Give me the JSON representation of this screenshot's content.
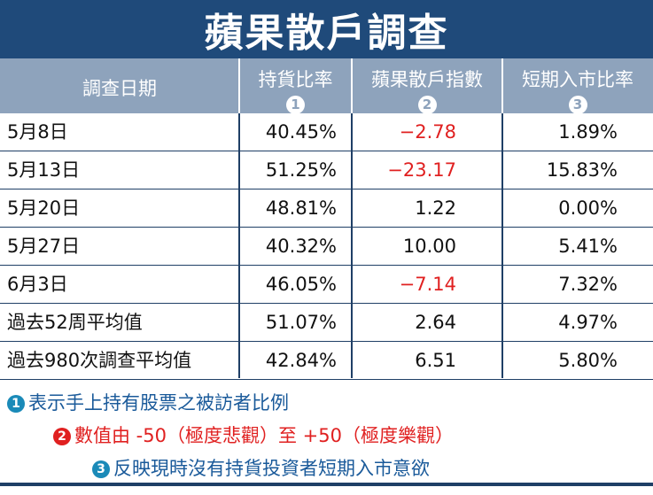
{
  "title": "蘋果散戶調查",
  "header": {
    "date_col": "調查日期",
    "col1": {
      "label": "持貨比率",
      "num": "1"
    },
    "col2": {
      "label": "蘋果散戶指數",
      "num": "2"
    },
    "col3": {
      "label": "短期入市比率",
      "num": "3"
    }
  },
  "rows": [
    {
      "date": "5月8日",
      "hold": "40.45%",
      "index": "−2.78",
      "short": "1.89%",
      "neg": true
    },
    {
      "date": "5月13日",
      "hold": "51.25%",
      "index": "−23.17",
      "short": "15.83%",
      "neg": true
    },
    {
      "date": "5月20日",
      "hold": "48.81%",
      "index": "1.22",
      "short": "0.00%",
      "neg": false
    },
    {
      "date": "5月27日",
      "hold": "40.32%",
      "index": "10.00",
      "short": "5.41%",
      "neg": false
    },
    {
      "date": "6月3日",
      "hold": "46.05%",
      "index": "−7.14",
      "short": "7.32%",
      "neg": true
    },
    {
      "date": "過去52周平均值",
      "hold": "51.07%",
      "index": "2.64",
      "short": "4.97%",
      "neg": false
    },
    {
      "date": "過去980次調查平均值",
      "hold": "42.84%",
      "index": "6.51",
      "short": "5.80%",
      "neg": false
    }
  ],
  "notes": [
    {
      "num": "1",
      "text": "表示手上持有股票之被訪者比例"
    },
    {
      "num": "2",
      "text": "數值由 -50（極度悲觀）至 +50（極度樂觀）"
    },
    {
      "num": "3",
      "text": "反映現時沒有持貨投資者短期入市意欲"
    }
  ],
  "colors": {
    "header": "#1f4a7a",
    "subheader": "#8ea3bc",
    "negative": "#e02020",
    "note_blue": "#1a5a9a"
  }
}
